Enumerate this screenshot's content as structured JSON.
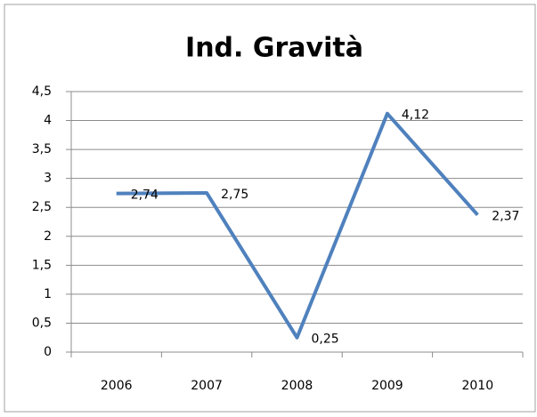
{
  "chart_data": {
    "type": "line",
    "title": "Ind. Gravità",
    "categories": [
      "2006",
      "2007",
      "2008",
      "2009",
      "2010"
    ],
    "values": [
      2.74,
      2.75,
      0.25,
      4.12,
      2.37
    ],
    "value_labels": [
      "2,74",
      "2,75",
      "0,25",
      "4,12",
      "2,37"
    ],
    "color": "#4f81bd",
    "ylim": [
      0,
      4.5
    ],
    "yticks": [
      0,
      {
        "value": 0.5,
        "label": "0,5"
      },
      1,
      {
        "value": 1.5,
        "label": "1,5"
      },
      2,
      {
        "value": 2.5,
        "label": "2,5"
      },
      3,
      {
        "value": 3.5,
        "label": "3,5"
      },
      4,
      {
        "value": 4.5,
        "label": "4,5"
      }
    ],
    "grid": true
  }
}
